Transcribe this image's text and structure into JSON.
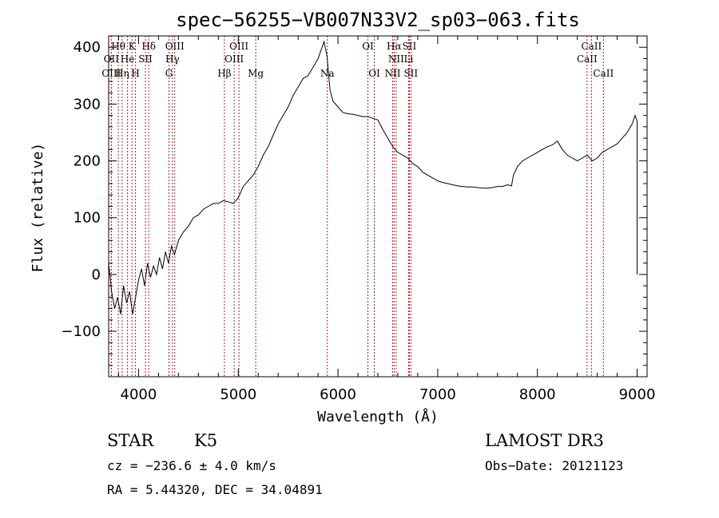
{
  "chart_data": {
    "type": "line",
    "title": "spec−56255−VB007N33V2_sp03−063.fits",
    "xlabel": "Wavelength (Å)",
    "ylabel": "Flux (relative)",
    "xlim": [
      3700,
      9100
    ],
    "ylim": [
      -180,
      420
    ],
    "x_ticks": [
      4000,
      5000,
      6000,
      7000,
      8000,
      9000
    ],
    "y_ticks": [
      -100,
      0,
      100,
      200,
      300,
      400
    ],
    "y_tick_labels": [
      "−100",
      "0",
      "100",
      "200",
      "300",
      "400"
    ],
    "series": [
      {
        "name": "flux",
        "x": [
          3700,
          3730,
          3760,
          3790,
          3820,
          3850,
          3880,
          3910,
          3940,
          3970,
          4000,
          4030,
          4060,
          4090,
          4120,
          4150,
          4180,
          4210,
          4240,
          4270,
          4300,
          4330,
          4360,
          4400,
          4450,
          4500,
          4550,
          4600,
          4650,
          4700,
          4750,
          4800,
          4850,
          4900,
          4950,
          5000,
          5050,
          5100,
          5150,
          5200,
          5250,
          5300,
          5350,
          5400,
          5450,
          5500,
          5550,
          5600,
          5650,
          5700,
          5750,
          5800,
          5830,
          5860,
          5890,
          5920,
          5950,
          6000,
          6050,
          6100,
          6150,
          6200,
          6250,
          6300,
          6350,
          6400,
          6450,
          6500,
          6550,
          6600,
          6650,
          6700,
          6750,
          6800,
          6850,
          6900,
          6950,
          7000,
          7050,
          7100,
          7150,
          7200,
          7250,
          7300,
          7350,
          7400,
          7450,
          7500,
          7550,
          7600,
          7650,
          7700,
          7740,
          7760,
          7800,
          7850,
          7900,
          7950,
          8000,
          8050,
          8100,
          8150,
          8200,
          8250,
          8300,
          8350,
          8400,
          8450,
          8500,
          8550,
          8600,
          8650,
          8700,
          8750,
          8800,
          8850,
          8900,
          8950,
          8980,
          9000,
          9000,
          9000
        ],
        "y": [
          20,
          -30,
          -60,
          -40,
          -70,
          -20,
          -50,
          -30,
          -70,
          -40,
          -10,
          10,
          -20,
          20,
          -5,
          15,
          0,
          30,
          10,
          40,
          20,
          50,
          35,
          60,
          75,
          85,
          100,
          105,
          115,
          120,
          125,
          125,
          130,
          128,
          125,
          135,
          155,
          165,
          175,
          190,
          210,
          225,
          245,
          265,
          280,
          295,
          315,
          330,
          345,
          350,
          365,
          380,
          395,
          410,
          385,
          325,
          305,
          295,
          285,
          283,
          282,
          280,
          278,
          278,
          275,
          272,
          255,
          240,
          225,
          215,
          210,
          205,
          195,
          190,
          180,
          175,
          170,
          165,
          162,
          160,
          158,
          156,
          155,
          154,
          154,
          153,
          152,
          152,
          153,
          155,
          155,
          158,
          156,
          175,
          190,
          200,
          205,
          210,
          215,
          220,
          225,
          228,
          235,
          220,
          210,
          205,
          200,
          205,
          210,
          200,
          205,
          215,
          220,
          225,
          230,
          240,
          250,
          265,
          280,
          270,
          0,
          40
        ]
      }
    ],
    "lines_row1": [
      {
        "label": "Hθ",
        "x": 3797
      },
      {
        "label": "K",
        "x": 3934
      },
      {
        "label": "Hδ",
        "x": 4102
      },
      {
        "label": "OIII",
        "x": 4363
      },
      {
        "label": "OIII",
        "x": 5007
      },
      {
        "label": "OI",
        "x": 6300
      },
      {
        "label": "Hα",
        "x": 6563
      },
      {
        "label": "SII",
        "x": 6716
      },
      {
        "label": "CaII",
        "x": 8542
      }
    ],
    "lines_row2": [
      {
        "label": "OII",
        "x": 3727
      },
      {
        "label": "He",
        "x": 3889
      },
      {
        "label": "SII",
        "x": 4069
      },
      {
        "label": "Hγ",
        "x": 4340
      },
      {
        "label": "OIII",
        "x": 4959
      },
      {
        "label": "NII",
        "x": 6583
      },
      {
        "label": "Li",
        "x": 6708
      },
      {
        "label": "CaII",
        "x": 8498
      }
    ],
    "lines_row3": [
      {
        "label": "OIII",
        "x": 3727
      },
      {
        "label": "Hη",
        "x": 3835
      },
      {
        "label": "H",
        "x": 3969
      },
      {
        "label": "G",
        "x": 4305
      },
      {
        "label": "Hβ",
        "x": 4861
      },
      {
        "label": "Mg",
        "x": 5175
      },
      {
        "label": "Na",
        "x": 5893
      },
      {
        "label": "OI",
        "x": 6364
      },
      {
        "label": "NII",
        "x": 6548
      },
      {
        "label": "SII",
        "x": 6731
      },
      {
        "label": "CaII",
        "x": 8662
      }
    ]
  },
  "info": {
    "class_label": "STAR",
    "subclass": "K5",
    "survey": "LAMOST DR3",
    "cz": "cz = −236.6 ± 4.0 km/s",
    "obs_date": "Obs−Date: 20121123",
    "coords": "RA =   5.44320, DEC =  34.04891"
  },
  "colors": {
    "line_marker": "#b22222",
    "spectrum": "#000000"
  }
}
